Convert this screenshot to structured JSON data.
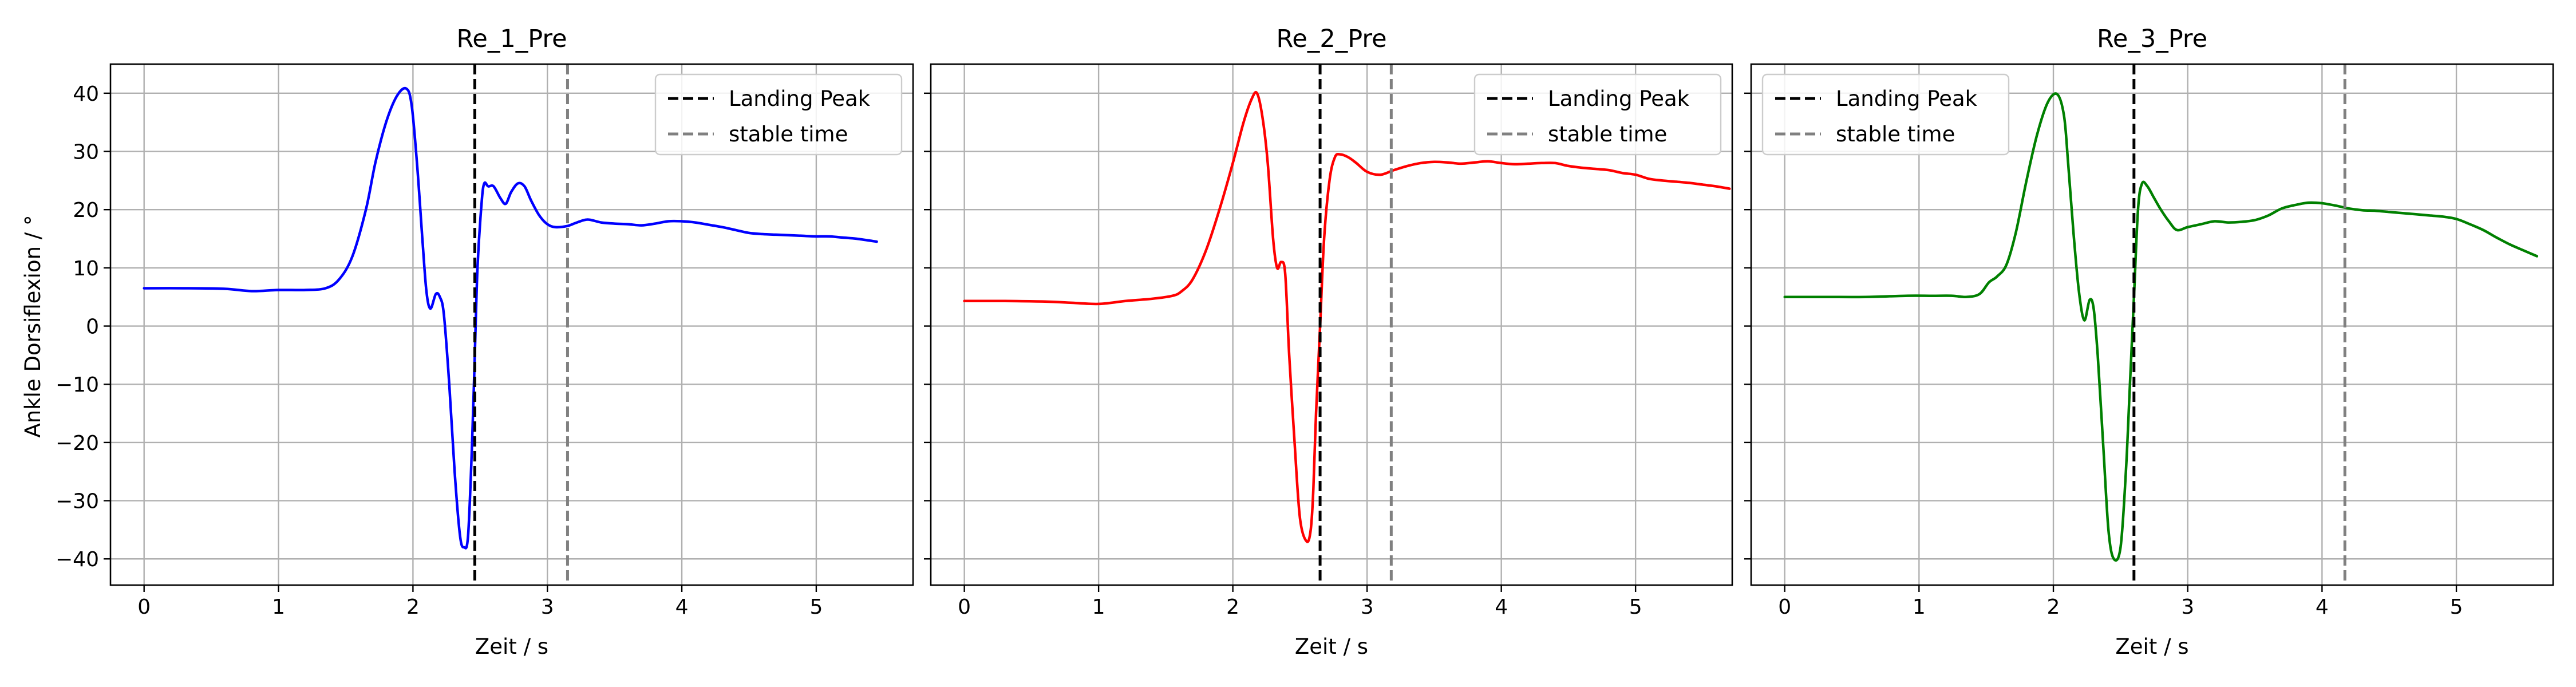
{
  "figure": {
    "ylabel": "Ankle Dorsiflexion / °",
    "xlabel": "Zeit / s"
  },
  "chart_data": [
    {
      "type": "line",
      "title": "Re_1_Pre",
      "xlabel": "Zeit / s",
      "ylabel": "Ankle Dorsiflexion / °",
      "xlim": [
        -0.25,
        5.72
      ],
      "ylim": [
        -44.5,
        45
      ],
      "xticks": [
        0,
        1,
        2,
        3,
        4,
        5
      ],
      "yticks": [
        -40,
        -30,
        -20,
        -10,
        0,
        10,
        20,
        30,
        40
      ],
      "grid": true,
      "legend": {
        "position": "top-right",
        "entries": [
          "Landing Peak",
          "stable time"
        ]
      },
      "landing_peak": 2.46,
      "stable_time": 3.15,
      "series": [
        {
          "color": "#0000ff",
          "x": [
            0,
            0.3,
            0.6,
            0.8,
            1.0,
            1.2,
            1.35,
            1.45,
            1.55,
            1.65,
            1.72,
            1.8,
            1.88,
            1.95,
            1.99,
            2.03,
            2.07,
            2.1,
            2.13,
            2.17,
            2.2,
            2.23,
            2.27,
            2.31,
            2.35,
            2.38,
            2.41,
            2.44,
            2.46,
            2.48,
            2.51,
            2.53,
            2.56,
            2.6,
            2.65,
            2.69,
            2.73,
            2.78,
            2.83,
            2.88,
            2.94,
            3.0,
            3.06,
            3.15,
            3.22,
            3.3,
            3.4,
            3.5,
            3.6,
            3.7,
            3.8,
            3.9,
            4.0,
            4.1,
            4.2,
            4.3,
            4.4,
            4.5,
            4.6,
            4.7,
            4.8,
            4.9,
            5.0,
            5.1,
            5.2,
            5.3,
            5.45
          ],
          "y": [
            6.5,
            6.5,
            6.4,
            6.0,
            6.2,
            6.2,
            6.5,
            8,
            12,
            20,
            28,
            35,
            39.5,
            40.8,
            38,
            28,
            15,
            6,
            3,
            5.5,
            5,
            2,
            -10,
            -25,
            -36,
            -38,
            -36,
            -20,
            -5,
            10,
            21,
            24.5,
            24,
            24,
            22,
            21,
            23,
            24.5,
            24,
            21.5,
            19,
            17.5,
            17,
            17.2,
            17.8,
            18.3,
            17.8,
            17.6,
            17.5,
            17.3,
            17.6,
            18.0,
            18.0,
            17.8,
            17.4,
            17.0,
            16.5,
            16.0,
            15.8,
            15.7,
            15.6,
            15.5,
            15.4,
            15.4,
            15.2,
            15.0,
            14.5
          ]
        }
      ]
    },
    {
      "type": "line",
      "title": "Re_2_Pre",
      "xlabel": "Zeit / s",
      "ylabel": "",
      "xlim": [
        -0.25,
        5.72
      ],
      "ylim": [
        -44.5,
        45
      ],
      "xticks": [
        0,
        1,
        2,
        3,
        4,
        5
      ],
      "yticks": [
        -40,
        -30,
        -20,
        -10,
        0,
        10,
        20,
        30,
        40
      ],
      "grid": true,
      "legend": {
        "position": "top-right",
        "entries": [
          "Landing Peak",
          "stable time"
        ]
      },
      "landing_peak": 2.65,
      "stable_time": 3.18,
      "series": [
        {
          "color": "#ff0000",
          "x": [
            0,
            0.3,
            0.6,
            0.8,
            1.0,
            1.2,
            1.4,
            1.55,
            1.62,
            1.7,
            1.8,
            1.9,
            2.0,
            2.08,
            2.14,
            2.18,
            2.22,
            2.26,
            2.3,
            2.33,
            2.36,
            2.39,
            2.42,
            2.46,
            2.5,
            2.55,
            2.58,
            2.6,
            2.62,
            2.65,
            2.68,
            2.72,
            2.76,
            2.8,
            2.86,
            2.92,
            3.0,
            3.1,
            3.2,
            3.3,
            3.4,
            3.5,
            3.6,
            3.7,
            3.8,
            3.9,
            4.0,
            4.1,
            4.2,
            4.3,
            4.4,
            4.5,
            4.6,
            4.7,
            4.8,
            4.9,
            5.0,
            5.1,
            5.2,
            5.3,
            5.4,
            5.5,
            5.6,
            5.7
          ],
          "y": [
            4.3,
            4.3,
            4.2,
            4.0,
            3.8,
            4.3,
            4.7,
            5.2,
            6,
            8,
            13,
            20,
            28,
            35,
            39,
            40,
            36,
            28,
            15,
            10,
            11,
            9,
            -5,
            -20,
            -33,
            -37,
            -35,
            -28,
            -15,
            0,
            15,
            25,
            29,
            29.5,
            29,
            28,
            26.5,
            26,
            26.8,
            27.5,
            28,
            28.2,
            28.1,
            27.9,
            28.1,
            28.3,
            28.0,
            27.8,
            27.9,
            28.0,
            28.0,
            27.5,
            27.2,
            27.0,
            26.8,
            26.3,
            26.0,
            25.3,
            25.0,
            24.8,
            24.6,
            24.3,
            24.0,
            23.6
          ]
        }
      ]
    },
    {
      "type": "line",
      "title": "Re_3_Pre",
      "xlabel": "Zeit / s",
      "ylabel": "",
      "xlim": [
        -0.25,
        5.72
      ],
      "ylim": [
        -44.5,
        45
      ],
      "xticks": [
        0,
        1,
        2,
        3,
        4,
        5
      ],
      "yticks": [
        -40,
        -30,
        -20,
        -10,
        0,
        10,
        20,
        30,
        40
      ],
      "grid": true,
      "legend": {
        "position": "top-left",
        "entries": [
          "Landing Peak",
          "stable time"
        ]
      },
      "landing_peak": 2.6,
      "stable_time": 4.17,
      "series": [
        {
          "color": "#008000",
          "x": [
            0,
            0.3,
            0.6,
            0.9,
            1.1,
            1.25,
            1.35,
            1.45,
            1.52,
            1.58,
            1.65,
            1.72,
            1.8,
            1.88,
            1.96,
            2.03,
            2.08,
            2.11,
            2.15,
            2.19,
            2.23,
            2.27,
            2.3,
            2.33,
            2.37,
            2.41,
            2.45,
            2.5,
            2.54,
            2.57,
            2.6,
            2.63,
            2.66,
            2.7,
            2.75,
            2.8,
            2.86,
            2.92,
            3.0,
            3.1,
            3.2,
            3.3,
            3.4,
            3.5,
            3.6,
            3.7,
            3.8,
            3.9,
            4.0,
            4.1,
            4.2,
            4.3,
            4.4,
            4.5,
            4.6,
            4.7,
            4.8,
            4.9,
            5.0,
            5.1,
            5.2,
            5.3,
            5.4,
            5.5,
            5.6
          ],
          "y": [
            5.0,
            5.0,
            5.0,
            5.2,
            5.2,
            5.2,
            5.0,
            5.5,
            7.5,
            8.5,
            10.5,
            16,
            25,
            33,
            38.5,
            39.8,
            36,
            28,
            16,
            6,
            1,
            4.5,
            3,
            -5,
            -20,
            -35,
            -40,
            -38,
            -25,
            -10,
            5,
            20,
            24.5,
            24,
            22,
            20,
            18,
            16.5,
            17,
            17.5,
            18,
            17.8,
            17.9,
            18.2,
            19,
            20.2,
            20.8,
            21.2,
            21.1,
            20.7,
            20.2,
            19.9,
            19.8,
            19.6,
            19.4,
            19.2,
            19.0,
            18.8,
            18.4,
            17.5,
            16.5,
            15.2,
            14.0,
            13.0,
            12.0
          ]
        }
      ]
    }
  ]
}
